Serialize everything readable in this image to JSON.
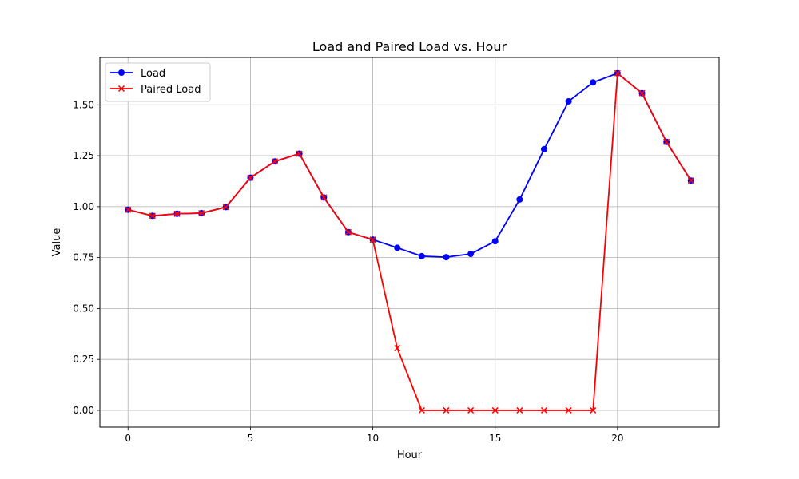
{
  "chart_data": {
    "type": "line",
    "title": "Load and Paired Load vs. Hour",
    "xlabel": "Hour",
    "ylabel": "Value",
    "xlim": [
      -1.15,
      24.15
    ],
    "ylim": [
      -0.0825,
      1.7325
    ],
    "xticks": [
      0,
      5,
      10,
      15,
      20
    ],
    "xtick_labels": [
      "0",
      "5",
      "10",
      "15",
      "20"
    ],
    "yticks": [
      0.0,
      0.25,
      0.5,
      0.75,
      1.0,
      1.25,
      1.5
    ],
    "ytick_labels": [
      "0.00",
      "0.25",
      "0.50",
      "0.75",
      "1.00",
      "1.25",
      "1.50"
    ],
    "grid": true,
    "legend_position": "upper-left",
    "x": [
      0,
      1,
      2,
      3,
      4,
      5,
      6,
      7,
      8,
      9,
      10,
      11,
      12,
      13,
      14,
      15,
      16,
      17,
      18,
      19,
      20,
      21,
      22,
      23
    ],
    "series": [
      {
        "name": "Load",
        "color": "#0000ff",
        "marker": "circle",
        "values": [
          0.985,
          0.955,
          0.965,
          0.968,
          0.998,
          1.142,
          1.222,
          1.26,
          1.045,
          0.875,
          0.838,
          0.798,
          0.757,
          0.752,
          0.768,
          0.83,
          1.035,
          1.282,
          1.517,
          1.61,
          1.655,
          1.557,
          1.318,
          1.128
        ]
      },
      {
        "name": "Paired Load",
        "color": "#ff0000",
        "marker": "x",
        "values": [
          0.985,
          0.955,
          0.965,
          0.968,
          0.998,
          1.142,
          1.222,
          1.26,
          1.045,
          0.875,
          0.838,
          0.305,
          0.0,
          0.0,
          0.0,
          0.0,
          0.0,
          0.0,
          0.0,
          0.0,
          1.655,
          1.557,
          1.318,
          1.128
        ]
      }
    ]
  }
}
